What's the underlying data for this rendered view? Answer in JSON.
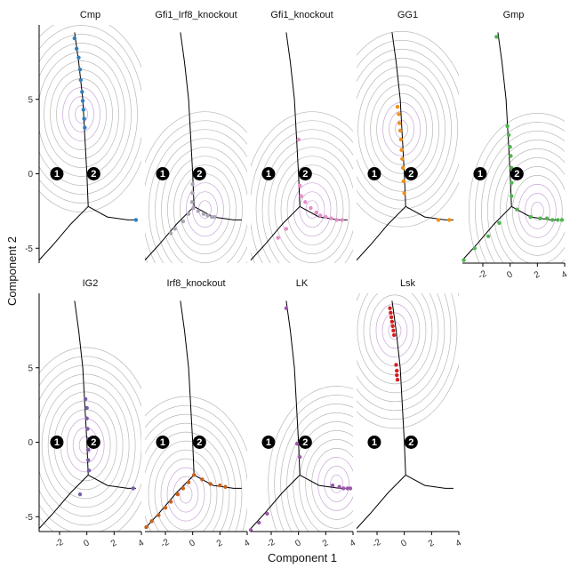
{
  "chart_data": {
    "type": "scatter",
    "xlabel": "Component 1",
    "ylabel": "Component 2",
    "xlim": [
      -3.5,
      4
    ],
    "ylim": [
      -6,
      10
    ],
    "x_ticks": [
      -2,
      0,
      2,
      4
    ],
    "y_ticks": [
      -5,
      0,
      5
    ],
    "grid": false,
    "branch_points": [
      {
        "label": "1",
        "x": -2.2,
        "y": 0
      },
      {
        "label": "2",
        "x": 0.5,
        "y": 0
      }
    ],
    "trajectory": [
      [
        [
          -0.9,
          9.5
        ],
        [
          -0.6,
          7.5
        ],
        [
          -0.3,
          5.0
        ],
        [
          -0.15,
          2.5
        ],
        [
          0.0,
          0.0
        ],
        [
          0.1,
          -2.2
        ]
      ],
      [
        [
          0.1,
          -2.2
        ],
        [
          1.5,
          -2.9
        ],
        [
          3.0,
          -3.1
        ],
        [
          3.6,
          -3.1
        ]
      ],
      [
        [
          0.1,
          -2.2
        ],
        [
          -1.2,
          -3.4
        ],
        [
          -2.5,
          -4.8
        ],
        [
          -3.5,
          -5.8
        ]
      ]
    ],
    "panels": [
      {
        "title": "Cmp",
        "color": "#2f7ebf",
        "density_center": [
          -0.4,
          4.0
        ],
        "points": [
          [
            -0.9,
            9.1
          ],
          [
            -0.75,
            8.4
          ],
          [
            -0.6,
            7.8
          ],
          [
            -0.5,
            7.0
          ],
          [
            -0.45,
            6.3
          ],
          [
            -0.35,
            5.5
          ],
          [
            -0.3,
            4.9
          ],
          [
            -0.25,
            4.3
          ],
          [
            -0.2,
            3.7
          ],
          [
            -0.15,
            3.1
          ],
          [
            3.6,
            -3.1
          ]
        ]
      },
      {
        "title": "Gfi1_Irf8_knockout",
        "color": "#a8a8b6",
        "density_center": [
          0.9,
          -2.4
        ],
        "points": [
          [
            -1.6,
            -4.0
          ],
          [
            -1.3,
            -3.7
          ],
          [
            -0.7,
            -3.2
          ],
          [
            -0.3,
            -2.7
          ],
          [
            0.05,
            -2.3
          ],
          [
            0.4,
            -2.5
          ],
          [
            0.8,
            -2.7
          ],
          [
            1.1,
            -2.8
          ],
          [
            1.4,
            -2.9
          ],
          [
            1.6,
            -2.9
          ],
          [
            0.0,
            -0.7
          ],
          [
            0.0,
            -1.3
          ],
          [
            -0.05,
            -1.9
          ]
        ]
      },
      {
        "title": "Gfi1_knockout",
        "color": "#e58cc9",
        "density_center": [
          1.0,
          -2.4
        ],
        "points": [
          [
            0.0,
            2.3
          ],
          [
            0.1,
            -0.8
          ],
          [
            0.2,
            -1.5
          ],
          [
            0.5,
            -1.9
          ],
          [
            0.9,
            -2.3
          ],
          [
            1.3,
            -2.6
          ],
          [
            1.6,
            -2.8
          ],
          [
            2.0,
            -2.9
          ],
          [
            2.4,
            -3.0
          ],
          [
            2.8,
            -3.1
          ],
          [
            3.2,
            -3.1
          ],
          [
            -0.9,
            -3.7
          ],
          [
            -1.5,
            -4.3
          ]
        ]
      },
      {
        "title": "GG1",
        "color": "#f0901a",
        "density_center": [
          -0.2,
          3.0
        ],
        "points": [
          [
            -0.5,
            4.5
          ],
          [
            -0.4,
            4.0
          ],
          [
            -0.35,
            3.4
          ],
          [
            -0.3,
            2.9
          ],
          [
            -0.25,
            2.3
          ],
          [
            -0.2,
            1.6
          ],
          [
            -0.15,
            1.0
          ],
          [
            -0.1,
            0.4
          ],
          [
            -0.05,
            -0.5
          ],
          [
            0.0,
            -1.3
          ],
          [
            2.5,
            -3.1
          ],
          [
            3.3,
            -3.1
          ]
        ]
      },
      {
        "title": "Gmp",
        "color": "#4fb44f",
        "density_center": [
          2.0,
          -2.5
        ],
        "points": [
          [
            -1.0,
            9.2
          ],
          [
            -0.2,
            3.2
          ],
          [
            -0.1,
            2.6
          ],
          [
            0.0,
            1.8
          ],
          [
            0.05,
            1.2
          ],
          [
            0.1,
            0.4
          ],
          [
            0.1,
            -0.6
          ],
          [
            0.1,
            -1.5
          ],
          [
            0.5,
            -2.4
          ],
          [
            1.5,
            -2.9
          ],
          [
            2.2,
            -3.0
          ],
          [
            2.7,
            -3.0
          ],
          [
            3.1,
            -3.1
          ],
          [
            3.5,
            -3.1
          ],
          [
            3.8,
            -3.1
          ],
          [
            -0.8,
            -3.3
          ],
          [
            -1.6,
            -4.2
          ],
          [
            -2.6,
            -5.0
          ],
          [
            -3.4,
            -5.8
          ]
        ]
      },
      {
        "title": "IG2",
        "color": "#7b5ea7",
        "density_center": [
          -0.1,
          -0.2
        ],
        "points": [
          [
            -0.1,
            2.9
          ],
          [
            0.0,
            2.3
          ],
          [
            0.0,
            1.6
          ],
          [
            0.05,
            0.9
          ],
          [
            0.1,
            0.2
          ],
          [
            0.1,
            -0.5
          ],
          [
            0.1,
            -1.2
          ],
          [
            0.15,
            -1.9
          ],
          [
            3.4,
            -3.1
          ],
          [
            -0.5,
            -3.5
          ]
        ]
      },
      {
        "title": "Irf8_knockout",
        "color": "#c7611c",
        "density_center": [
          -0.5,
          -3.5
        ],
        "points": [
          [
            -3.4,
            -5.7
          ],
          [
            -3.0,
            -5.3
          ],
          [
            -2.5,
            -4.9
          ],
          [
            -2.0,
            -4.4
          ],
          [
            -1.6,
            -4.0
          ],
          [
            -1.1,
            -3.5
          ],
          [
            -0.7,
            -3.1
          ],
          [
            -0.3,
            -2.7
          ],
          [
            0.1,
            -2.2
          ],
          [
            0.7,
            -2.5
          ],
          [
            1.3,
            -2.8
          ],
          [
            2.0,
            -2.9
          ],
          [
            2.4,
            -3.0
          ]
        ]
      },
      {
        "title": "LK",
        "color": "#9b59a8",
        "density_center": [
          2.8,
          -2.8
        ],
        "points": [
          [
            -0.9,
            9.0
          ],
          [
            -0.1,
            -0.1
          ],
          [
            0.1,
            -1.0
          ],
          [
            2.5,
            -2.9
          ],
          [
            3.0,
            -3.0
          ],
          [
            3.3,
            -3.1
          ],
          [
            3.6,
            -3.1
          ],
          [
            3.8,
            -3.1
          ],
          [
            -3.5,
            -5.9
          ],
          [
            -2.9,
            -5.4
          ],
          [
            -2.3,
            -4.8
          ]
        ]
      },
      {
        "title": "Lsk",
        "color": "#d62020",
        "density_center": [
          -0.7,
          7.5
        ],
        "points": [
          [
            -1.05,
            9.0
          ],
          [
            -1.0,
            8.7
          ],
          [
            -0.95,
            8.4
          ],
          [
            -0.9,
            8.1
          ],
          [
            -0.85,
            7.8
          ],
          [
            -0.8,
            7.5
          ],
          [
            -0.75,
            7.2
          ],
          [
            -0.6,
            5.2
          ],
          [
            -0.55,
            4.8
          ],
          [
            -0.55,
            4.5
          ],
          [
            -0.5,
            4.2
          ]
        ]
      }
    ]
  }
}
